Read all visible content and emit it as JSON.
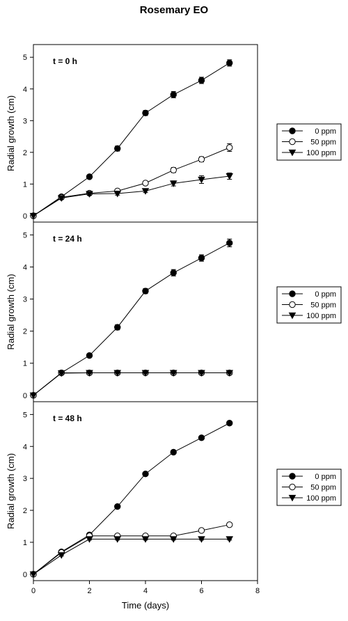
{
  "title": "Rosemary  EO",
  "chart_data": [
    {
      "type": "line",
      "panel_label": "t = 0 h",
      "ylabel": "Radial growth (cm)",
      "xlabel": "",
      "xlim": [
        0,
        8
      ],
      "ylim": [
        -0.2,
        5.4
      ],
      "yticks": [
        0,
        1,
        2,
        3,
        4,
        5
      ],
      "xticks": [],
      "legend_position": "right",
      "series": [
        {
          "name": "0 ppm",
          "marker": "filled-circle",
          "x": [
            0,
            1,
            2,
            3,
            4,
            5,
            6,
            7
          ],
          "values": [
            0,
            0.6,
            1.23,
            2.12,
            3.24,
            3.82,
            4.27,
            4.82
          ],
          "errors": [
            0,
            0.05,
            0.05,
            0.08,
            0.08,
            0.1,
            0.1,
            0.1
          ]
        },
        {
          "name": "50 ppm",
          "marker": "open-circle",
          "x": [
            0,
            1,
            2,
            3,
            4,
            5,
            6,
            7
          ],
          "values": [
            0,
            0.58,
            0.71,
            0.78,
            1.03,
            1.44,
            1.78,
            2.15
          ],
          "errors": [
            0,
            0.04,
            0.04,
            0.05,
            0.05,
            0.08,
            0.08,
            0.12
          ]
        },
        {
          "name": "100 ppm",
          "marker": "filled-triangle-down",
          "x": [
            0,
            1,
            2,
            3,
            4,
            5,
            6,
            7
          ],
          "values": [
            0,
            0.56,
            0.69,
            0.7,
            0.78,
            1.02,
            1.14,
            1.25
          ],
          "errors": [
            0,
            0.04,
            0.04,
            0.05,
            0.05,
            0.08,
            0.12,
            0.1
          ]
        }
      ]
    },
    {
      "type": "line",
      "panel_label": "t = 24 h",
      "ylabel": "Radial growth (cm)",
      "xlabel": "",
      "xlim": [
        0,
        8
      ],
      "ylim": [
        -0.2,
        5.4
      ],
      "yticks": [
        0,
        1,
        2,
        3,
        4,
        5
      ],
      "xticks": [],
      "legend_position": "right",
      "series": [
        {
          "name": "0 ppm",
          "marker": "filled-circle",
          "x": [
            0,
            1,
            2,
            3,
            4,
            5,
            6,
            7
          ],
          "values": [
            0,
            0.7,
            1.24,
            2.12,
            3.25,
            3.82,
            4.28,
            4.75
          ],
          "errors": [
            0,
            0.05,
            0.05,
            0.08,
            0.08,
            0.1,
            0.1,
            0.12
          ]
        },
        {
          "name": "50 ppm",
          "marker": "open-circle",
          "x": [
            0,
            1,
            2,
            3,
            4,
            5,
            6,
            7
          ],
          "values": [
            0,
            0.7,
            0.7,
            0.7,
            0.7,
            0.7,
            0.7,
            0.7
          ],
          "errors": [
            0,
            0.03,
            0.03,
            0.03,
            0.03,
            0.03,
            0.03,
            0.03
          ]
        },
        {
          "name": "100 ppm",
          "marker": "filled-triangle-down",
          "x": [
            0,
            1,
            2,
            3,
            4,
            5,
            6,
            7
          ],
          "values": [
            0,
            0.69,
            0.7,
            0.7,
            0.7,
            0.7,
            0.7,
            0.7
          ],
          "errors": [
            0,
            0.03,
            0.03,
            0.03,
            0.03,
            0.03,
            0.03,
            0.03
          ]
        }
      ]
    },
    {
      "type": "line",
      "panel_label": "t = 48 h",
      "ylabel": "Radial growth (cm)",
      "xlabel": "Time (days)",
      "xlim": [
        0,
        8
      ],
      "ylim": [
        -0.2,
        5.4
      ],
      "yticks": [
        0,
        1,
        2,
        3,
        4,
        5
      ],
      "xticks": [
        0,
        2,
        4,
        6,
        8
      ],
      "legend_position": "right",
      "series": [
        {
          "name": "0 ppm",
          "marker": "filled-circle",
          "x": [
            0,
            1,
            2,
            3,
            4,
            5,
            6,
            7
          ],
          "values": [
            0,
            0.7,
            1.23,
            2.12,
            3.14,
            3.82,
            4.27,
            4.73
          ],
          "errors": [
            0,
            0.03,
            0.03,
            0.03,
            0.03,
            0.03,
            0.03,
            0.06
          ]
        },
        {
          "name": "50 ppm",
          "marker": "open-circle",
          "x": [
            0,
            1,
            2,
            3,
            4,
            5,
            6,
            7
          ],
          "values": [
            0,
            0.68,
            1.2,
            1.2,
            1.2,
            1.2,
            1.37,
            1.55
          ],
          "errors": [
            0,
            0.03,
            0.03,
            0.03,
            0.03,
            0.03,
            0.03,
            0.05
          ]
        },
        {
          "name": "100 ppm",
          "marker": "filled-triangle-down",
          "x": [
            0,
            1,
            2,
            3,
            4,
            5,
            6,
            7
          ],
          "values": [
            0,
            0.6,
            1.1,
            1.1,
            1.1,
            1.1,
            1.1,
            1.1
          ],
          "errors": [
            0,
            0.03,
            0.03,
            0.03,
            0.03,
            0.03,
            0.03,
            0.03
          ]
        }
      ]
    }
  ]
}
